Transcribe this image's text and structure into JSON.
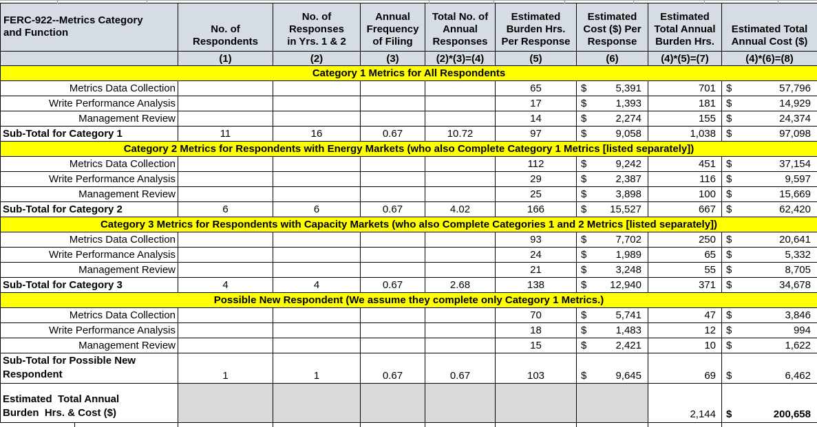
{
  "colors": {
    "header_bg": "#D6DCE4",
    "banner_bg": "#FFFF00",
    "shaded_bg": "#D9D9D9",
    "border": "#000000"
  },
  "table": {
    "header": {
      "labels": [
        "FERC-922--Metrics Category\nand Function",
        "No. of Respondents",
        "No. of\nResponses\nin Yrs. 1 & 2",
        "Annual\nFrequency\nof Filing",
        "Total No. of\nAnnual\nResponses",
        "Estimated\nBurden Hrs.\nPer Response",
        "Estimated\nCost ($) Per\nResponse",
        "Estimated\nTotal Annual\nBurden Hrs.",
        "Estimated Total\nAnnual Cost ($)"
      ],
      "formulas": [
        "",
        "(1)",
        "(2)",
        "(3)",
        "(2)*(3)=(4)",
        "(5)",
        "(6)",
        "(4)*(5)=(7)",
        "(4)*(6)=(8)"
      ]
    },
    "sections": [
      {
        "banner": "Category 1 Metrics for All Respondents",
        "rows": [
          {
            "label": "Metrics Data Collection",
            "burden_hrs": "65",
            "cost": "5,391",
            "total_burden_hrs": "701",
            "total_cost": "57,796"
          },
          {
            "label": "Write Performance Analysis",
            "burden_hrs": "17",
            "cost": "1,393",
            "total_burden_hrs": "181",
            "total_cost": "14,929"
          },
          {
            "label": "Management Review",
            "burden_hrs": "14",
            "cost": "2,274",
            "total_burden_hrs": "155",
            "total_cost": "24,374"
          }
        ],
        "subtotal": {
          "label": "Sub-Total for Category 1",
          "respondents": "11",
          "responses": "16",
          "frequency": "0.67",
          "annual_responses": "10.72",
          "burden_hrs": "97",
          "cost": "9,058",
          "total_burden_hrs": "1,038",
          "total_cost": "97,098",
          "tall": false
        }
      },
      {
        "banner": "Category 2 Metrics for Respondents with Energy Markets (who also Complete Category 1 Metrics [listed separately])",
        "rows": [
          {
            "label": "Metrics Data Collection",
            "burden_hrs": "112",
            "cost": "9,242",
            "total_burden_hrs": "451",
            "total_cost": "37,154"
          },
          {
            "label": "Write Performance Analysis",
            "burden_hrs": "29",
            "cost": "2,387",
            "total_burden_hrs": "116",
            "total_cost": "9,597"
          },
          {
            "label": "Management Review",
            "burden_hrs": "25",
            "cost": "3,898",
            "total_burden_hrs": "100",
            "total_cost": "15,669"
          }
        ],
        "subtotal": {
          "label": "Sub-Total for Category 2",
          "respondents": "6",
          "responses": "6",
          "frequency": "0.67",
          "annual_responses": "4.02",
          "burden_hrs": "166",
          "cost": "15,527",
          "total_burden_hrs": "667",
          "total_cost": "62,420",
          "tall": false
        }
      },
      {
        "banner": "Category 3 Metrics for Respondents with Capacity Markets (who also Complete Categories 1 and 2 Metrics [listed separately])",
        "rows": [
          {
            "label": "Metrics Data Collection",
            "burden_hrs": "93",
            "cost": "7,702",
            "total_burden_hrs": "250",
            "total_cost": "20,641"
          },
          {
            "label": "Write Performance Analysis",
            "burden_hrs": "24",
            "cost": "1,989",
            "total_burden_hrs": "65",
            "total_cost": "5,332"
          },
          {
            "label": "Management Review",
            "burden_hrs": "21",
            "cost": "3,248",
            "total_burden_hrs": "55",
            "total_cost": "8,705"
          }
        ],
        "subtotal": {
          "label": "Sub-Total for Category 3",
          "respondents": "4",
          "responses": "4",
          "frequency": "0.67",
          "annual_responses": "2.68",
          "burden_hrs": "138",
          "cost": "12,940",
          "total_burden_hrs": "371",
          "total_cost": "34,678",
          "tall": false
        }
      },
      {
        "banner": "Possible New Respondent (We assume they complete only Category 1 Metrics.)",
        "rows": [
          {
            "label": "Metrics Data Collection",
            "burden_hrs": "70",
            "cost": "5,741",
            "total_burden_hrs": "47",
            "total_cost": "3,846"
          },
          {
            "label": "Write Performance Analysis",
            "burden_hrs": "18",
            "cost": "1,483",
            "total_burden_hrs": "12",
            "total_cost": "994"
          },
          {
            "label": "Management Review",
            "burden_hrs": "15",
            "cost": "2,421",
            "total_burden_hrs": "10",
            "total_cost": "1,622"
          }
        ],
        "subtotal": {
          "label": "Sub-Total for Possible New Respondent",
          "respondents": "1",
          "responses": "1",
          "frequency": "0.67",
          "annual_responses": "0.67",
          "burden_hrs": "103",
          "cost": "9,645",
          "total_burden_hrs": "69",
          "total_cost": "6,462",
          "tall": true
        }
      }
    ],
    "total_row": {
      "label": "Estimated  Total Annual\nBurden  Hrs. & Cost ($)",
      "total_burden_hrs": "2,144",
      "total_cost": "200,658"
    }
  }
}
